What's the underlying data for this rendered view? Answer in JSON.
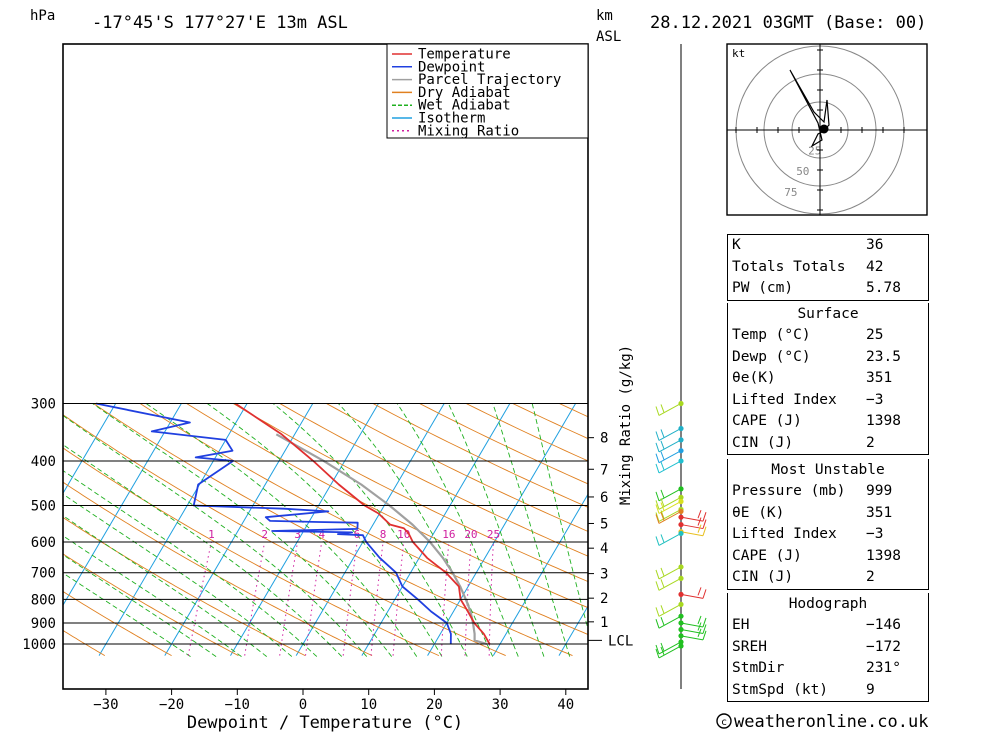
{
  "header": {
    "pressure_unit": "hPa",
    "location": "-17°45'S  177°27'E  13m  ASL",
    "km_label": "km",
    "asl_label": "ASL",
    "datetime": "28.12.2021 03GMT (Base: 00)"
  },
  "chart_data": {
    "type": "line",
    "subtype": "skew-T log-P diagram",
    "xlabel": "Dewpoint / Temperature (°C)",
    "ylabel_right": "Mixing Ratio (g/kg)",
    "x_ticks": [
      -30,
      -20,
      -10,
      0,
      10,
      20,
      30,
      40
    ],
    "x_tick_labels": [
      "−30",
      "−20",
      "−10",
      "0",
      "10",
      "20",
      "30",
      "40"
    ],
    "pressure_levels": [
      300,
      400,
      500,
      600,
      700,
      800,
      900,
      1000
    ],
    "pressure_labels": [
      "300",
      "400",
      "500",
      "600",
      "700",
      "800",
      "900",
      "1000"
    ],
    "altitude_km": [
      {
        "km": "8",
        "p": 356
      },
      {
        "km": "7",
        "p": 417
      },
      {
        "km": "6",
        "p": 479
      },
      {
        "km": "5",
        "p": 547
      },
      {
        "km": "4",
        "p": 619
      },
      {
        "km": "3",
        "p": 703
      },
      {
        "km": "2",
        "p": 795
      },
      {
        "km": "1",
        "p": 895
      }
    ],
    "lcl": {
      "label": "LCL",
      "p": 982
    },
    "mixing_ratio_labels": [
      "1",
      "2",
      "3",
      "4",
      "6",
      "8",
      "10",
      "16",
      "20",
      "25"
    ],
    "legend": [
      "Temperature",
      "Dewpoint",
      "Parcel Trajectory",
      "Dry Adiabat",
      "Wet Adiabat",
      "Isotherm",
      "Mixing Ratio"
    ],
    "legend_position": "top-center",
    "colors": {
      "temperature": "#e03030",
      "dewpoint": "#2040e0",
      "parcel": "#a0a0a0",
      "dry_adiabat": "#e08020",
      "wet_adiabat": "#20b020",
      "isotherm": "#20a0e0",
      "mixing_ratio": "#d020a0"
    },
    "series": [
      {
        "name": "Temperature",
        "points": [
          [
            1000,
            28.4
          ],
          [
            950,
            26.6
          ],
          [
            900,
            24.2
          ],
          [
            850,
            22.2
          ],
          [
            800,
            20.0
          ],
          [
            750,
            18.6
          ],
          [
            700,
            15.4
          ],
          [
            650,
            11.2
          ],
          [
            600,
            7.6
          ],
          [
            575,
            6.2
          ],
          [
            560,
            5.0
          ],
          [
            550,
            2.6
          ],
          [
            520,
            -0.2
          ],
          [
            500,
            -3.0
          ],
          [
            450,
            -8.8
          ],
          [
            400,
            -14.8
          ],
          [
            350,
            -22.0
          ],
          [
            300,
            -31.8
          ]
        ]
      },
      {
        "name": "Dewpoint",
        "points": [
          [
            1000,
            22.5
          ],
          [
            950,
            21.6
          ],
          [
            900,
            20.0
          ],
          [
            850,
            16.6
          ],
          [
            800,
            13.5
          ],
          [
            750,
            10.0
          ],
          [
            700,
            7.8
          ],
          [
            650,
            4.0
          ],
          [
            600,
            0.5
          ],
          [
            580,
            -0.6
          ],
          [
            577,
            -4.5
          ],
          [
            572,
            -2.5
          ],
          [
            568,
            -14.8
          ],
          [
            562,
            -2.0
          ],
          [
            545,
            -2.5
          ],
          [
            543,
            -8.6
          ],
          [
            540,
            -16.0
          ],
          [
            530,
            -17.0
          ],
          [
            515,
            -8.0
          ],
          [
            508,
            -15.0
          ],
          [
            500,
            -29.0
          ],
          [
            450,
            -30.2
          ],
          [
            400,
            -27.0
          ],
          [
            393,
            -33.0
          ],
          [
            380,
            -28.0
          ],
          [
            360,
            -30.0
          ],
          [
            345,
            -42.0
          ],
          [
            330,
            -37.0
          ],
          [
            300,
            -53.0
          ]
        ]
      },
      {
        "name": "Parcel Trajectory",
        "points": [
          [
            1000,
            28.0
          ],
          [
            982,
            25.8
          ],
          [
            950,
            25.2
          ],
          [
            900,
            24.0
          ],
          [
            850,
            22.6
          ],
          [
            800,
            20.8
          ],
          [
            750,
            18.8
          ],
          [
            700,
            16.4
          ],
          [
            650,
            13.6
          ],
          [
            600,
            10.2
          ],
          [
            550,
            6.0
          ],
          [
            500,
            0.8
          ],
          [
            450,
            -5.4
          ],
          [
            400,
            -13.2
          ],
          [
            350,
            -22.8
          ]
        ]
      }
    ]
  },
  "hodograph": {
    "unit": "kt",
    "rings": [
      "25",
      "50",
      "75"
    ]
  },
  "indices": {
    "rows": [
      {
        "label": "K",
        "value": "36"
      },
      {
        "label": "Totals Totals",
        "value": "42"
      },
      {
        "label": "PW (cm)",
        "value": "5.78"
      }
    ]
  },
  "surface": {
    "title": "Surface",
    "rows": [
      {
        "label": "Temp (°C)",
        "value": "25"
      },
      {
        "label": "Dewp (°C)",
        "value": "23.5"
      },
      {
        "label": "θe(K)",
        "value": "351"
      },
      {
        "label": "Lifted Index",
        "value": "−3"
      },
      {
        "label": "CAPE (J)",
        "value": "1398"
      },
      {
        "label": "CIN (J)",
        "value": "2"
      }
    ]
  },
  "most_unstable": {
    "title": "Most Unstable",
    "rows": [
      {
        "label": "Pressure (mb)",
        "value": "999"
      },
      {
        "label": "θE (K)",
        "value": "351"
      },
      {
        "label": "Lifted Index",
        "value": "−3"
      },
      {
        "label": "CAPE (J)",
        "value": "1398"
      },
      {
        "label": "CIN (J)",
        "value": "2"
      }
    ]
  },
  "hodograph_table": {
    "title": "Hodograph",
    "rows": [
      {
        "label": "EH",
        "value": "−146"
      },
      {
        "label": "SREH",
        "value": "−172"
      },
      {
        "label": "StmDir",
        "value": "231°"
      },
      {
        "label": "StmSpd (kt)",
        "value": "9"
      }
    ]
  },
  "footer": {
    "copyright_icon": "copyright-icon",
    "site": "weatheronline.co.uk"
  }
}
